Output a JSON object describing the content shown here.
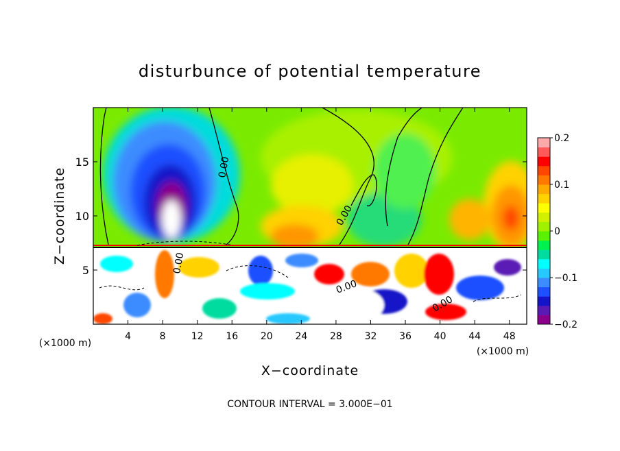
{
  "chart_data": {
    "type": "heatmap",
    "title": "disturbunce of potential temperature",
    "xlabel": "X−coordinate",
    "ylabel": "Z−coordinate",
    "x_unit": "(×1000 m)",
    "x_unit_right": "(×1000 m)",
    "xlim": [
      0,
      50
    ],
    "ylim": [
      0,
      20
    ],
    "x_ticks": [
      4,
      8,
      12,
      16,
      20,
      24,
      28,
      32,
      36,
      40,
      44,
      48
    ],
    "y_ticks": [
      5,
      10,
      15
    ],
    "colorbar": {
      "range": [
        -0.2,
        0.2
      ],
      "tick_values": [
        0.2,
        0.1,
        0,
        -0.1,
        -0.2
      ],
      "tick_labels": [
        "0.2",
        "0.1",
        "0",
        "−0.1",
        "−0.2"
      ],
      "colors": [
        "#8b008b",
        "#5a1ab4",
        "#1414c8",
        "#1e50ff",
        "#3c8cff",
        "#28c8ff",
        "#00ffff",
        "#00dca0",
        "#00f050",
        "#5af000",
        "#a0f000",
        "#d2f000",
        "#ffff00",
        "#ffd200",
        "#ffaa00",
        "#ff7800",
        "#ff4600",
        "#ff0000",
        "#ff5a5a",
        "#ffaaaa"
      ]
    },
    "contour_labels": [
      "0.00",
      "0.00",
      "0.00",
      "0.00",
      "0.00"
    ],
    "footer": "CONTOUR INTERVAL = 3.000E−01",
    "value_fields": [
      {
        "region": "upper layer",
        "x_range": [
          0,
          50
        ],
        "z_range": [
          7.3,
          20
        ],
        "dominant_value": 0.03
      },
      {
        "region": "cold anomaly",
        "x_range": [
          3,
          14
        ],
        "z_range": [
          7.3,
          17.5
        ],
        "min_value": -0.2
      },
      {
        "region": "warm anomaly right",
        "x_range": [
          42,
          50
        ],
        "z_range": [
          7.3,
          13
        ],
        "max_value": 0.15
      },
      {
        "region": "warm anomaly center",
        "x_range": [
          20,
          28
        ],
        "z_range": [
          7.3,
          10
        ],
        "max_value": 0.1
      },
      {
        "region": "lower layer",
        "x_range": [
          0,
          50
        ],
        "z_range": [
          0,
          7.3
        ],
        "note": "strong mixed perturbations beyond ±0.2"
      }
    ]
  }
}
